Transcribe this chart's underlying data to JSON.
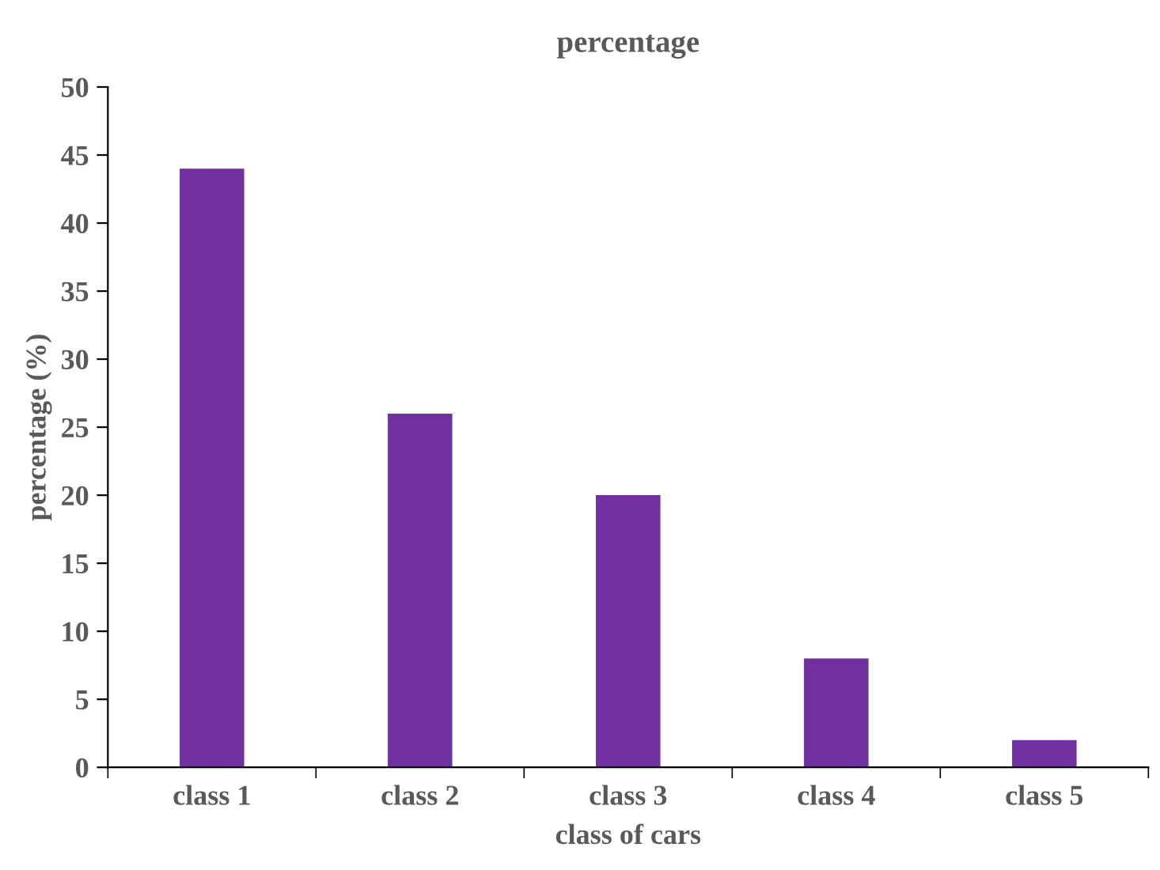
{
  "chart_data": {
    "type": "bar",
    "title": "percentage",
    "xlabel": "class of cars",
    "ylabel": "percentage (%)",
    "categories": [
      "class 1",
      "class 2",
      "class 3",
      "class 4",
      "class 5"
    ],
    "values": [
      44,
      26,
      20,
      8,
      2
    ],
    "color": "#7030a0",
    "ylim": [
      0,
      50
    ],
    "yticks": [
      0,
      5,
      10,
      15,
      20,
      25,
      30,
      35,
      40,
      45,
      50
    ],
    "grid": false,
    "legend": false
  }
}
